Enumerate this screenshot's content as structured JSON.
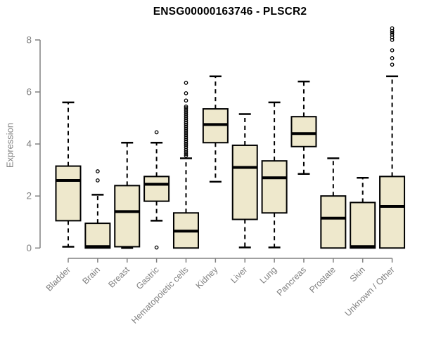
{
  "chart_data": {
    "type": "boxplot",
    "title": "ENSG00000163746 - PLSCR2",
    "ylabel": "Expression",
    "xlabel": "",
    "ylim": [
      0,
      8.6
    ],
    "yticks": [
      0,
      2,
      4,
      6,
      8
    ],
    "grid": false,
    "legend": false,
    "categories": [
      "Bladder",
      "Brain",
      "Breast",
      "Gastric",
      "Hematopoietic cells",
      "Kidney",
      "Liver",
      "Lung",
      "Pancreas",
      "Prostate",
      "Skin",
      "Unknown / Other"
    ],
    "boxes": [
      {
        "category": "Bladder",
        "whisker_low": 0.05,
        "q1": 1.05,
        "median": 2.6,
        "q3": 3.15,
        "whisker_high": 5.6,
        "outliers": []
      },
      {
        "category": "Brain",
        "whisker_low": 0.0,
        "q1": 0.0,
        "median": 0.05,
        "q3": 0.95,
        "whisker_high": 2.05,
        "outliers": [
          2.6,
          2.95
        ]
      },
      {
        "category": "Breast",
        "whisker_low": 0.0,
        "q1": 0.05,
        "median": 1.4,
        "q3": 2.4,
        "whisker_high": 4.05,
        "outliers": []
      },
      {
        "category": "Gastric",
        "whisker_low": 1.05,
        "q1": 1.8,
        "median": 2.45,
        "q3": 2.75,
        "whisker_high": 4.05,
        "outliers": [
          0.02,
          4.45
        ]
      },
      {
        "category": "Hematopoietic cells",
        "whisker_low": 0.0,
        "q1": 0.0,
        "median": 0.65,
        "q3": 1.35,
        "whisker_high": 3.45,
        "outliers": [
          3.55,
          3.62,
          3.7,
          3.78,
          3.87,
          3.95,
          4.02,
          4.1,
          4.18,
          4.26,
          4.34,
          4.42,
          4.5,
          4.58,
          4.66,
          4.74,
          4.82,
          4.9,
          4.98,
          5.06,
          5.14,
          5.22,
          5.3,
          5.38,
          5.44,
          5.67,
          5.95,
          6.35
        ]
      },
      {
        "category": "Kidney",
        "whisker_low": 2.55,
        "q1": 4.05,
        "median": 4.75,
        "q3": 5.35,
        "whisker_high": 6.6,
        "outliers": []
      },
      {
        "category": "Liver",
        "whisker_low": 0.02,
        "q1": 1.1,
        "median": 3.1,
        "q3": 3.95,
        "whisker_high": 5.15,
        "outliers": []
      },
      {
        "category": "Lung",
        "whisker_low": 0.02,
        "q1": 1.35,
        "median": 2.7,
        "q3": 3.35,
        "whisker_high": 5.6,
        "outliers": []
      },
      {
        "category": "Pancreas",
        "whisker_low": 2.85,
        "q1": 3.9,
        "median": 4.4,
        "q3": 5.05,
        "whisker_high": 6.4,
        "outliers": []
      },
      {
        "category": "Prostate",
        "whisker_low": 0.0,
        "q1": 0.0,
        "median": 1.15,
        "q3": 2.0,
        "whisker_high": 3.45,
        "outliers": []
      },
      {
        "category": "Skin",
        "whisker_low": 0.0,
        "q1": 0.0,
        "median": 0.05,
        "q3": 1.75,
        "whisker_high": 2.7,
        "outliers": []
      },
      {
        "category": "Unknown / Other",
        "whisker_low": 0.0,
        "q1": 0.0,
        "median": 1.6,
        "q3": 2.75,
        "whisker_high": 6.6,
        "outliers": [
          7.05,
          7.3,
          7.6,
          8.0,
          8.1,
          8.2,
          8.28,
          8.35,
          8.45
        ]
      }
    ],
    "colors": {
      "box_fill": "#EEE8CC",
      "box_stroke": "#000000",
      "median_color": "#000000",
      "whisker_color": "#000000",
      "outlier_color": "#000000",
      "axis_color": "#808080",
      "tick_label_color": "#808080",
      "category_label_color": "#808080",
      "title_color": "#000000",
      "background": "#ffffff"
    }
  }
}
